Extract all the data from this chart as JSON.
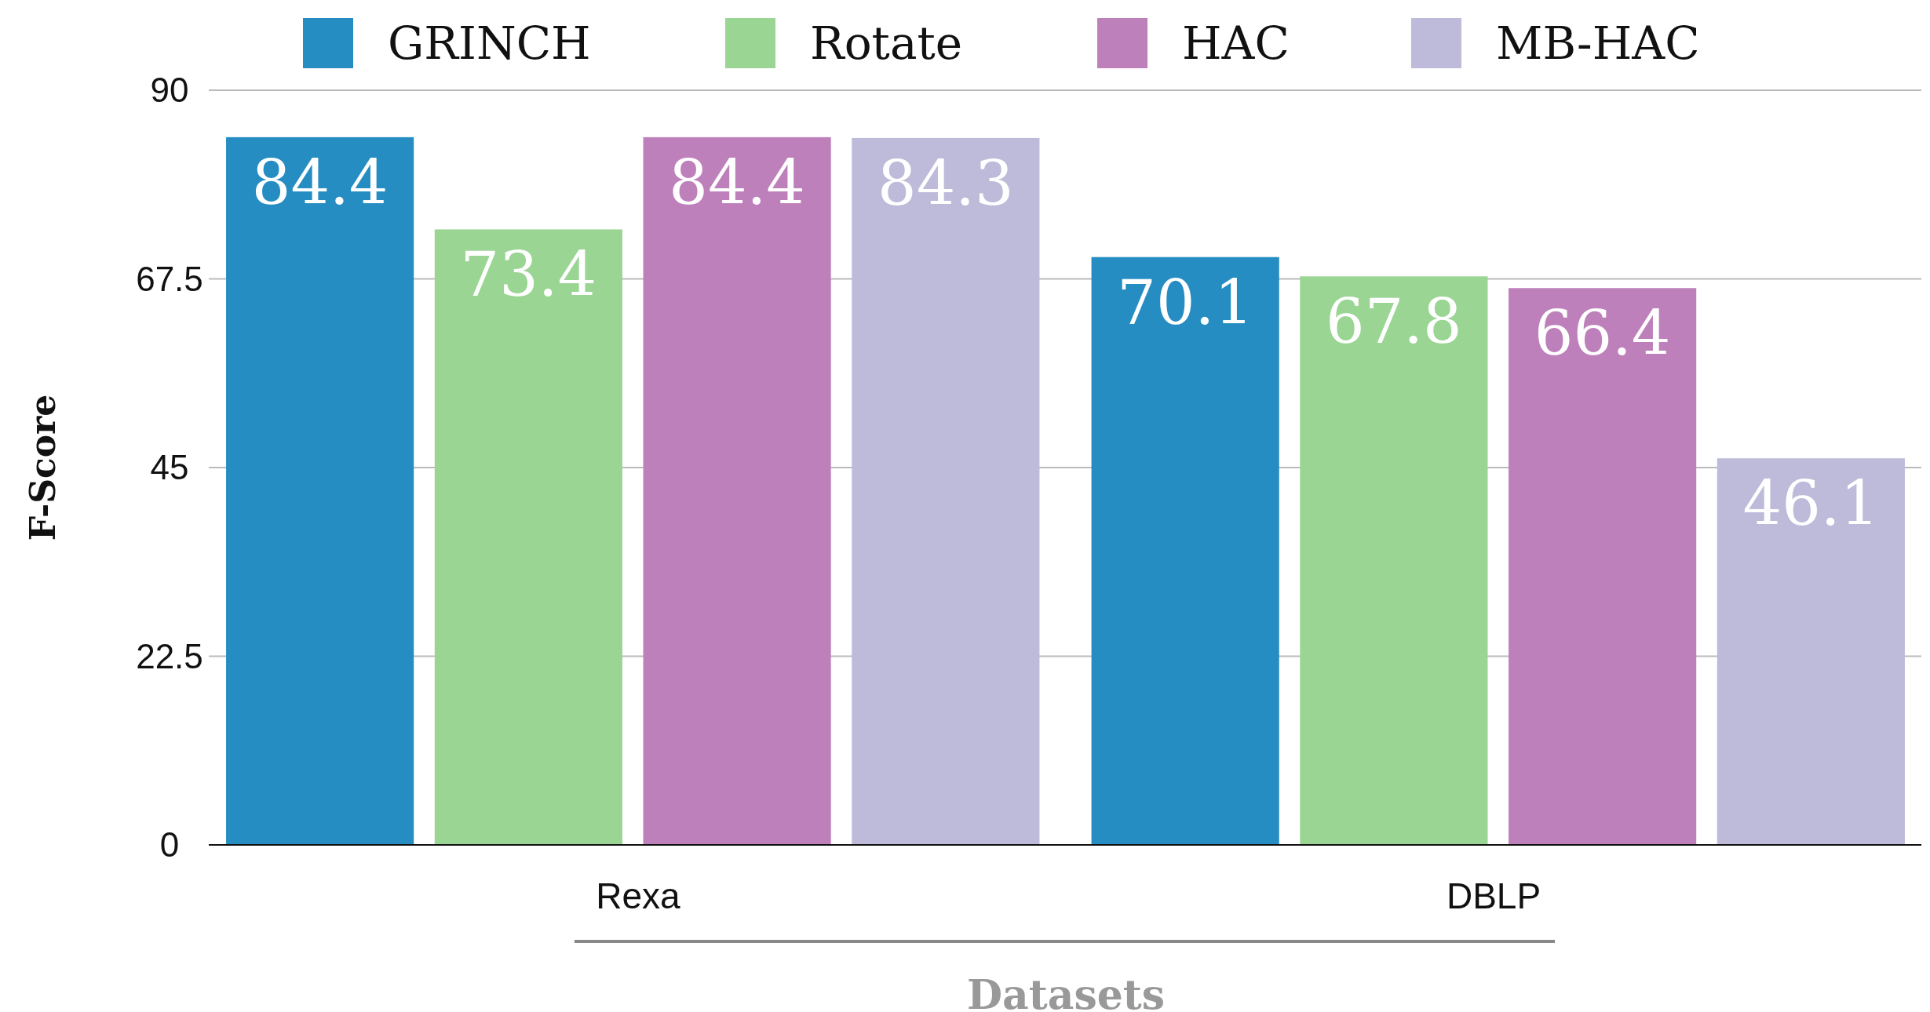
{
  "chart_data": {
    "type": "bar",
    "xlabel": "Datasets",
    "ylabel": "F-Score",
    "categories": [
      "Rexa",
      "DBLP"
    ],
    "series": [
      {
        "name": "GRINCH",
        "color": "#258dc2",
        "values": [
          84.4,
          70.1
        ]
      },
      {
        "name": "Rotate",
        "color": "#9ad594",
        "values": [
          73.4,
          67.8
        ]
      },
      {
        "name": "HAC",
        "color": "#bd80bb",
        "values": [
          84.4,
          66.4
        ]
      },
      {
        "name": "MB-HAC",
        "color": "#bebada",
        "values": [
          84.3,
          46.1
        ]
      }
    ],
    "ylim": [
      0,
      90
    ],
    "yticks": [
      0,
      22.5,
      45,
      67.5,
      90
    ],
    "grid": "y",
    "legend": "top",
    "data_labels": true
  }
}
